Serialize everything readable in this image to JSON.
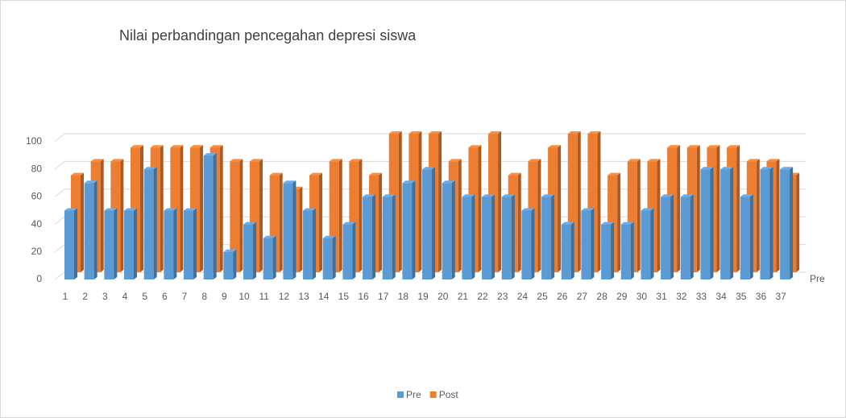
{
  "chart_data": {
    "type": "bar3d",
    "title": "Nilai perbandingan pencegahan depresi siswa",
    "categories": [
      "1",
      "2",
      "3",
      "4",
      "5",
      "6",
      "7",
      "8",
      "9",
      "10",
      "11",
      "12",
      "13",
      "14",
      "15",
      "16",
      "17",
      "18",
      "19",
      "20",
      "21",
      "22",
      "23",
      "24",
      "25",
      "26",
      "27",
      "28",
      "29",
      "30",
      "31",
      "32",
      "33",
      "34",
      "35",
      "36",
      "37"
    ],
    "series": [
      {
        "name": "Pre",
        "color": "#5b9bd5",
        "values": [
          50,
          70,
          50,
          50,
          80,
          50,
          50,
          90,
          20,
          40,
          30,
          70,
          50,
          30,
          40,
          60,
          60,
          70,
          80,
          70,
          60,
          60,
          60,
          50,
          60,
          40,
          50,
          40,
          40,
          50,
          60,
          60,
          80,
          80,
          60,
          80,
          80
        ]
      },
      {
        "name": "Post",
        "color": "#ed7d31",
        "values": [
          70,
          80,
          80,
          90,
          90,
          90,
          90,
          90,
          80,
          80,
          70,
          60,
          70,
          80,
          80,
          70,
          100,
          100,
          100,
          80,
          90,
          100,
          70,
          80,
          90,
          100,
          100,
          70,
          80,
          80,
          90,
          90,
          90,
          90,
          80,
          80,
          70
        ]
      }
    ],
    "depth_axis_label": "Pre",
    "ylim": [
      0,
      100
    ],
    "yticks": [
      0,
      20,
      40,
      60,
      80,
      100
    ],
    "grid": true,
    "legend": "bottom"
  }
}
